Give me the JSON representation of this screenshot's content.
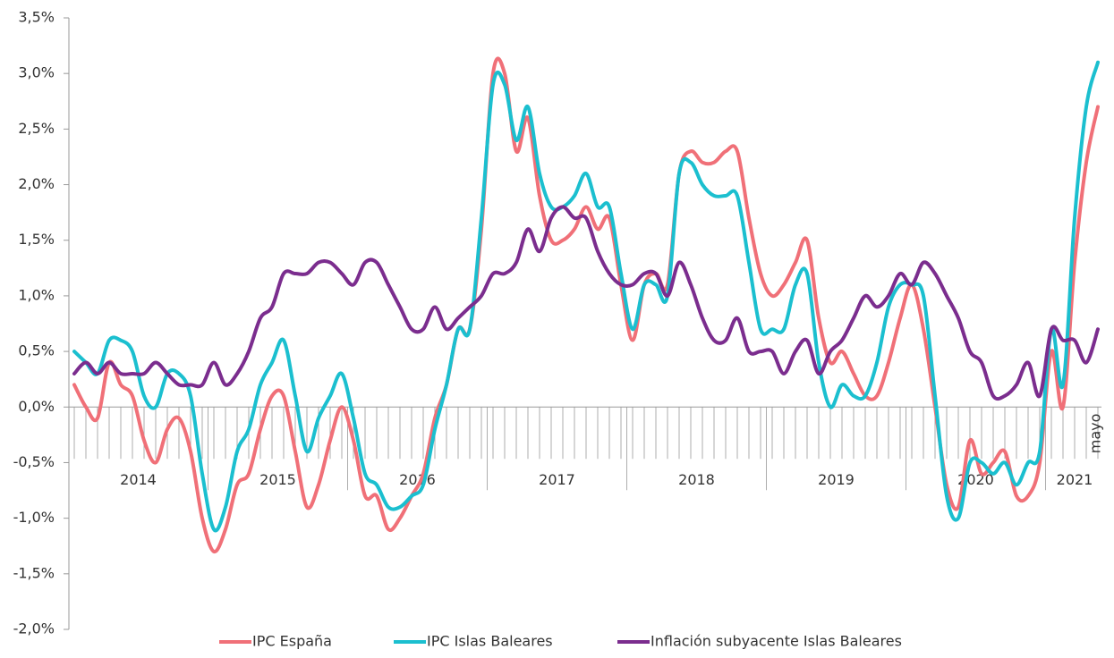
{
  "chart_data": {
    "type": "line",
    "categories": [
      null,
      null,
      null,
      null,
      null,
      null,
      null,
      null,
      null,
      null,
      null,
      null,
      null,
      null,
      null,
      null,
      null,
      null,
      null,
      null,
      null,
      null,
      null,
      null,
      null,
      null,
      null,
      null,
      null,
      null,
      null,
      null,
      null,
      null,
      null,
      null,
      null,
      null,
      null,
      null,
      null,
      null,
      null,
      null,
      null,
      null,
      null,
      null,
      null,
      null,
      null,
      null,
      null,
      null,
      null,
      null,
      null,
      null,
      null,
      null,
      null,
      null,
      null,
      null,
      null,
      null,
      null,
      null,
      null,
      null,
      null,
      null,
      null,
      null,
      null,
      null,
      null,
      null,
      null,
      null,
      null,
      null,
      null,
      null,
      null,
      null,
      null,
      null,
      "mayo"
    ],
    "year_groups": [
      {
        "label": "2014",
        "months": 12
      },
      {
        "label": "2015",
        "months": 12
      },
      {
        "label": "2016",
        "months": 12
      },
      {
        "label": "2017",
        "months": 12
      },
      {
        "label": "2018",
        "months": 12
      },
      {
        "label": "2019",
        "months": 12
      },
      {
        "label": "2020",
        "months": 12
      },
      {
        "label": "2021",
        "months": 5
      }
    ],
    "ylim": [
      -2.0,
      3.5
    ],
    "yticks": [
      {
        "value": -2.0,
        "label": "-2,0%"
      },
      {
        "value": -1.5,
        "label": "-1,5%"
      },
      {
        "value": -1.0,
        "label": "-1,0%"
      },
      {
        "value": -0.5,
        "label": "-0,5%"
      },
      {
        "value": 0.0,
        "label": "0,0%"
      },
      {
        "value": 0.5,
        "label": "0,5%"
      },
      {
        "value": 1.0,
        "label": "1,0%"
      },
      {
        "value": 1.5,
        "label": "1,5%"
      },
      {
        "value": 2.0,
        "label": "2,0%"
      },
      {
        "value": 2.5,
        "label": "2,5%"
      },
      {
        "value": 3.0,
        "label": "3,0%"
      },
      {
        "value": 3.5,
        "label": "3,5%"
      }
    ],
    "series": [
      {
        "name": "IPC España",
        "color": "#f07078",
        "values": [
          0.2,
          0.0,
          -0.1,
          0.4,
          0.2,
          0.1,
          -0.3,
          -0.5,
          -0.2,
          -0.1,
          -0.4,
          -1.0,
          -1.3,
          -1.1,
          -0.7,
          -0.6,
          -0.2,
          0.1,
          0.1,
          -0.4,
          -0.9,
          -0.7,
          -0.3,
          0.0,
          -0.3,
          -0.8,
          -0.8,
          -1.1,
          -1.0,
          -0.8,
          -0.6,
          -0.1,
          0.2,
          0.7,
          0.7,
          1.6,
          3.0,
          3.0,
          2.3,
          2.6,
          1.9,
          1.5,
          1.5,
          1.6,
          1.8,
          1.6,
          1.7,
          1.1,
          0.6,
          1.1,
          1.2,
          1.1,
          2.1,
          2.3,
          2.2,
          2.2,
          2.3,
          2.3,
          1.7,
          1.2,
          1.0,
          1.1,
          1.3,
          1.5,
          0.8,
          0.4,
          0.5,
          0.3,
          0.1,
          0.1,
          0.4,
          0.8,
          1.1,
          0.7,
          0.0,
          -0.7,
          -0.9,
          -0.3,
          -0.6,
          -0.5,
          -0.4,
          -0.8,
          -0.8,
          -0.5,
          0.5,
          0.0,
          1.3,
          2.2,
          2.7
        ]
      },
      {
        "name": "IPC Islas Baleares",
        "color": "#1bbfcf",
        "values": [
          0.5,
          0.4,
          0.3,
          0.6,
          0.6,
          0.5,
          0.1,
          0.0,
          0.3,
          0.3,
          0.1,
          -0.6,
          -1.1,
          -0.9,
          -0.4,
          -0.2,
          0.2,
          0.4,
          0.6,
          0.1,
          -0.4,
          -0.1,
          0.1,
          0.3,
          -0.1,
          -0.6,
          -0.7,
          -0.9,
          -0.9,
          -0.8,
          -0.7,
          -0.2,
          0.2,
          0.7,
          0.7,
          1.7,
          2.9,
          2.9,
          2.4,
          2.7,
          2.1,
          1.8,
          1.8,
          1.9,
          2.1,
          1.8,
          1.8,
          1.2,
          0.7,
          1.1,
          1.1,
          1.0,
          2.1,
          2.2,
          2.0,
          1.9,
          1.9,
          1.9,
          1.3,
          0.7,
          0.7,
          0.7,
          1.1,
          1.2,
          0.4,
          0.0,
          0.2,
          0.1,
          0.1,
          0.4,
          0.9,
          1.1,
          1.1,
          1.0,
          0.1,
          -0.8,
          -1.0,
          -0.5,
          -0.5,
          -0.6,
          -0.5,
          -0.7,
          -0.5,
          -0.4,
          0.7,
          0.2,
          1.7,
          2.7,
          3.1
        ]
      },
      {
        "name": "Inflación subyacente Islas Baleares",
        "color": "#7b2d8e",
        "values": [
          0.3,
          0.4,
          0.3,
          0.4,
          0.3,
          0.3,
          0.3,
          0.4,
          0.3,
          0.2,
          0.2,
          0.2,
          0.4,
          0.2,
          0.3,
          0.5,
          0.8,
          0.9,
          1.2,
          1.2,
          1.2,
          1.3,
          1.3,
          1.2,
          1.1,
          1.3,
          1.3,
          1.1,
          0.9,
          0.7,
          0.7,
          0.9,
          0.7,
          0.8,
          0.9,
          1.0,
          1.2,
          1.2,
          1.3,
          1.6,
          1.4,
          1.7,
          1.8,
          1.7,
          1.7,
          1.4,
          1.2,
          1.1,
          1.1,
          1.2,
          1.2,
          1.0,
          1.3,
          1.1,
          0.8,
          0.6,
          0.6,
          0.8,
          0.5,
          0.5,
          0.5,
          0.3,
          0.5,
          0.6,
          0.3,
          0.5,
          0.6,
          0.8,
          1.0,
          0.9,
          1.0,
          1.2,
          1.1,
          1.3,
          1.2,
          1.0,
          0.8,
          0.5,
          0.4,
          0.1,
          0.1,
          0.2,
          0.4,
          0.1,
          0.7,
          0.6,
          0.6,
          0.4,
          0.7
        ]
      }
    ],
    "legend": "bottom"
  }
}
